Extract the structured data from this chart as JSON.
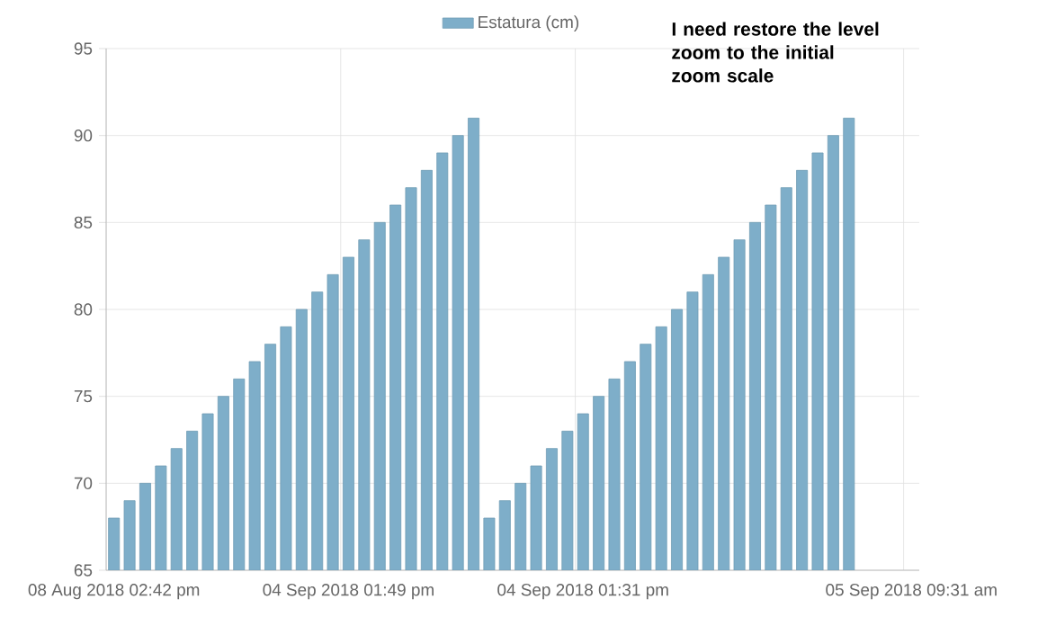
{
  "chart_data": {
    "type": "bar",
    "categories": [
      "08 Aug 2018 02:42 pm",
      null,
      null,
      null,
      null,
      null,
      null,
      null,
      null,
      null,
      null,
      null,
      null,
      null,
      null,
      "04 Sep 2018 01:49 pm",
      null,
      null,
      null,
      null,
      null,
      null,
      null,
      null,
      null,
      null,
      null,
      null,
      null,
      null,
      "04 Sep 2018 01:31 pm",
      null,
      null,
      null,
      null,
      null,
      null,
      null,
      null,
      null,
      null,
      null,
      null,
      null,
      null,
      null,
      null,
      null,
      null,
      null,
      null,
      "05 Sep 2018 09:31 am"
    ],
    "series": [
      {
        "name": "Estatura (cm)",
        "color": "#7eaec9",
        "values": [
          68,
          69,
          70,
          71,
          72,
          73,
          74,
          75,
          76,
          77,
          78,
          79,
          80,
          81,
          82,
          83,
          84,
          85,
          86,
          87,
          88,
          89,
          90,
          91,
          68,
          69,
          70,
          71,
          72,
          73,
          74,
          75,
          76,
          77,
          78,
          79,
          80,
          81,
          82,
          83,
          84,
          85,
          86,
          87,
          88,
          89,
          90,
          91,
          null,
          null,
          null,
          null
        ]
      }
    ],
    "ylim": [
      65,
      95
    ],
    "yticks": [
      65,
      70,
      75,
      80,
      85,
      90,
      95
    ],
    "grid": true,
    "legend": "top",
    "annotations": [
      "I need restore the level zoom to the initial zoom scale"
    ]
  }
}
